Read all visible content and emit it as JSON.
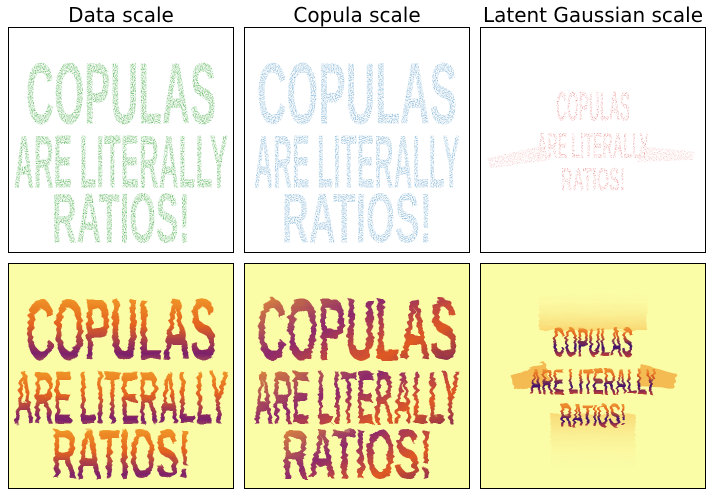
{
  "figure": {
    "titles": [
      "Data scale",
      "Copula scale",
      "Latent Gaussian scale"
    ],
    "colors": {
      "data_scale": "#2ca02c",
      "copula_scale": "#1f77b4",
      "latent_scale": "#d62728",
      "density_background": "#fbfca6",
      "density_mid": "#f79a22",
      "density_high": "#3b0f6f"
    },
    "text_lines": [
      "COPULAS",
      "ARE LITERALLY",
      "RATIOS!"
    ]
  },
  "chart_data": [
    {
      "type": "scatter",
      "title": "Data scale",
      "xlabel": "",
      "ylabel": "",
      "grid": false,
      "ticks": false,
      "series": [
        {
          "shape": "COPULAS / ARE LITERALLY / RATIOS!",
          "color": "#2ca02c"
        }
      ]
    },
    {
      "type": "scatter",
      "title": "Copula scale",
      "xlabel": "",
      "ylabel": "",
      "grid": false,
      "ticks": false,
      "series": [
        {
          "shape": "COPULAS / ARE LITERALLY / RATIOS!",
          "color": "#1f77b4"
        }
      ]
    },
    {
      "type": "scatter",
      "title": "Latent Gaussian scale",
      "xlabel": "",
      "ylabel": "",
      "grid": false,
      "ticks": false,
      "series": [
        {
          "shape": "COPULAS / ARE LITERALLY / RATIOS!",
          "color": "#d62728"
        }
      ]
    },
    {
      "type": "heatmap",
      "title": "",
      "colormap": "inferno (reversed)",
      "ticks": false
    },
    {
      "type": "heatmap",
      "title": "",
      "colormap": "inferno (reversed)",
      "ticks": false
    },
    {
      "type": "heatmap",
      "title": "",
      "colormap": "inferno (reversed)",
      "ticks": false
    }
  ]
}
